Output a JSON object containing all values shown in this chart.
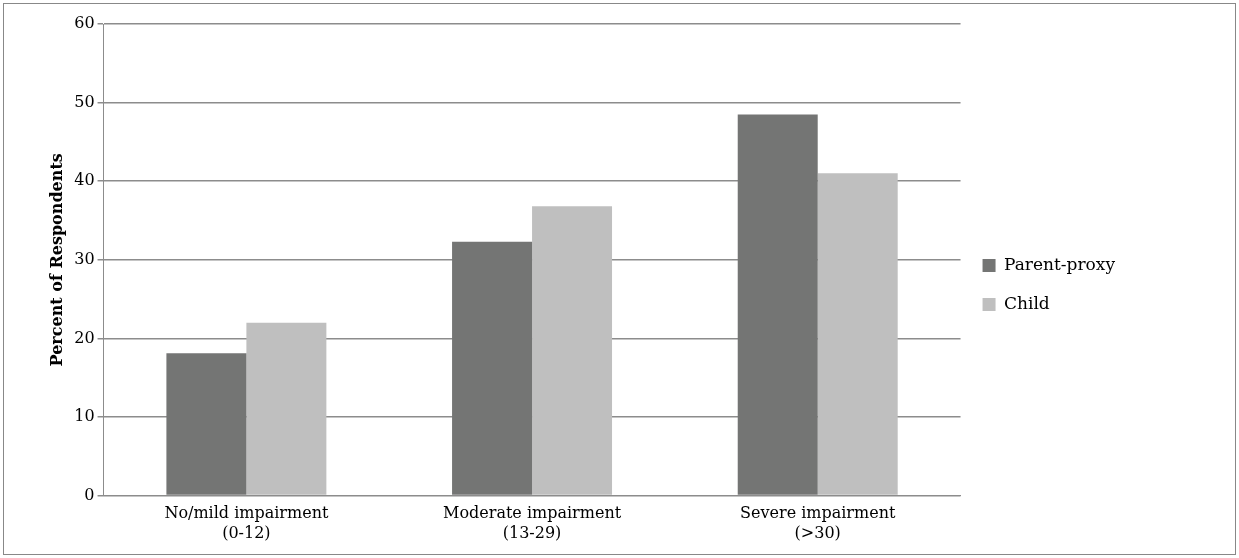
{
  "chart_data": {
    "type": "bar",
    "ylabel": "Percent of Respondents",
    "categories": [
      "No/mild impairment\n(0-12)",
      "Moderate impairment\n(13-29)",
      "Severe impairment\n(>30)"
    ],
    "series": [
      {
        "name": "Parent-proxy",
        "color": "#747574",
        "values": [
          18.1,
          32.3,
          48.5
        ]
      },
      {
        "name": "Child",
        "color": "#bfbfbf",
        "values": [
          22.0,
          36.8,
          41.0
        ]
      }
    ],
    "ylim": [
      0,
      60
    ],
    "yticks": [
      0,
      10,
      20,
      30,
      40,
      50,
      60
    ],
    "grid": "y",
    "legend": "right"
  }
}
